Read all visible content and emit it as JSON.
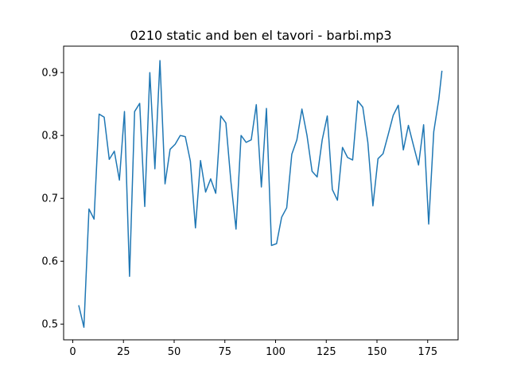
{
  "chart_data": {
    "type": "line",
    "title": "0210 static and ben el tavori - barbi.mp3",
    "xlabel": "",
    "ylabel": "",
    "xlim": [
      -4.5,
      190
    ],
    "ylim": [
      0.475,
      0.942
    ],
    "xticks": [
      0,
      25,
      50,
      75,
      100,
      125,
      150,
      175
    ],
    "yticks": [
      0.5,
      0.6,
      0.7,
      0.8,
      0.9
    ],
    "xtick_labels": [
      "0",
      "25",
      "50",
      "75",
      "100",
      "125",
      "150",
      "175"
    ],
    "ytick_labels": [
      "0.5",
      "0.6",
      "0.7",
      "0.8",
      "0.9"
    ],
    "grid": false,
    "legend": false,
    "line_color": "#1f77b4",
    "series": [
      {
        "x": [
          3,
          5.5,
          8,
          10.5,
          13,
          15.5,
          18,
          20.5,
          23,
          25.5,
          28,
          30.5,
          33,
          35.5,
          38,
          40.5,
          43,
          45.5,
          48,
          50.5,
          53,
          55.5,
          58,
          60.5,
          63,
          65.5,
          68,
          70.5,
          73,
          75.5,
          78,
          80.5,
          83,
          85.5,
          88,
          90.5,
          93,
          95.5,
          98,
          100.5,
          103,
          105.5,
          108,
          110.5,
          113,
          115.5,
          118,
          120.5,
          123,
          125.5,
          128,
          130.5,
          133,
          135.5,
          138,
          140.5,
          143,
          145.5,
          148,
          150.5,
          153,
          155.5,
          158,
          160.5,
          163,
          165.5,
          168,
          170.5,
          173,
          175.5,
          178,
          180.5,
          182
        ],
        "y": [
          0.529,
          0.495,
          0.683,
          0.667,
          0.834,
          0.829,
          0.762,
          0.775,
          0.729,
          0.838,
          0.576,
          0.838,
          0.851,
          0.687,
          0.9,
          0.747,
          0.919,
          0.723,
          0.778,
          0.786,
          0.8,
          0.798,
          0.759,
          0.653,
          0.76,
          0.71,
          0.731,
          0.708,
          0.831,
          0.82,
          0.726,
          0.651,
          0.8,
          0.789,
          0.793,
          0.849,
          0.718,
          0.843,
          0.625,
          0.628,
          0.67,
          0.685,
          0.77,
          0.793,
          0.842,
          0.8,
          0.743,
          0.734,
          0.793,
          0.831,
          0.714,
          0.697,
          0.781,
          0.765,
          0.761,
          0.855,
          0.845,
          0.789,
          0.688,
          0.763,
          0.771,
          0.801,
          0.832,
          0.848,
          0.777,
          0.816,
          0.784,
          0.753,
          0.817,
          0.659,
          0.806,
          0.858,
          0.902
        ]
      }
    ]
  }
}
